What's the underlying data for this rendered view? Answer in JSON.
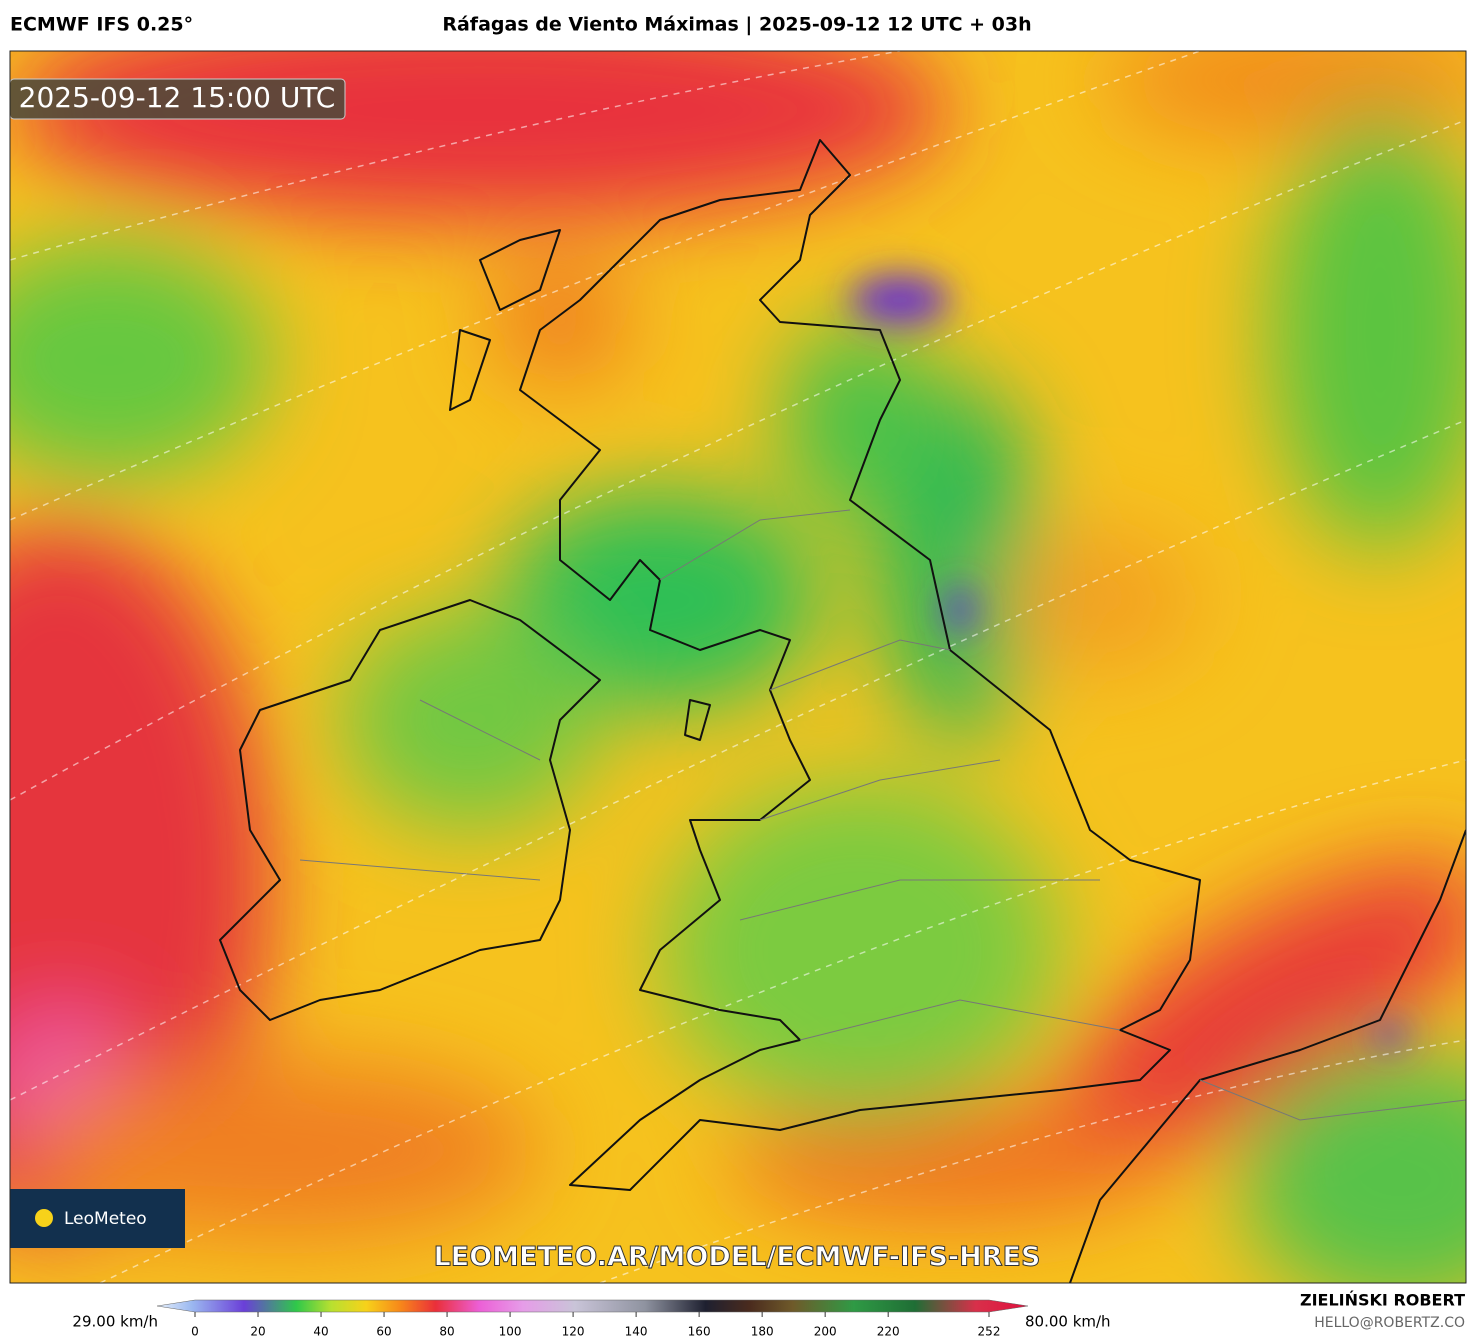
{
  "header": {
    "model": "ECMWF IFS 0.25°",
    "title": "Ráfagas de Viento Máximas | 2025-09-12 12 UTC + 03h"
  },
  "map": {
    "timestamp": "2025-09-12 15:00 UTC",
    "logo": "LeoMeteo",
    "url": "LEOMETEO.AR/MODEL/ECMWF-IFS-HRES"
  },
  "colorbar": {
    "min_label": "29.00 km/h",
    "max_label": "80.00 km/h",
    "ticks": [
      0,
      20,
      40,
      60,
      80,
      100,
      120,
      140,
      160,
      180,
      200,
      220,
      252
    ]
  },
  "footer": {
    "author": "ZIELIŃSKI ROBERT",
    "email": "HELLO@ROBERTZ.CO"
  }
}
